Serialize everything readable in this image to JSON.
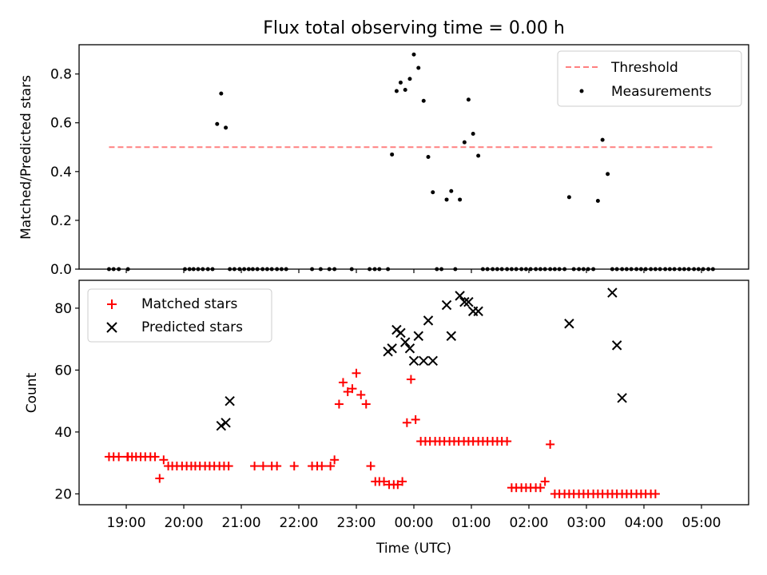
{
  "page": {
    "title": "Flux total observing time = 0.00 h",
    "x_axis_label": "Time (UTC)",
    "x_tick_labels": [
      "19:00",
      "20:00",
      "21:00",
      "22:00",
      "23:00",
      "00:00",
      "01:00",
      "02:00",
      "03:00",
      "04:00",
      "05:00"
    ]
  },
  "chart_data": [
    {
      "type": "scatter",
      "title": "Flux total observing time = 0.00 h",
      "ylabel": "Matched/Predicted stars",
      "xlabel": "",
      "x_unit": "hours since 19:00 UTC",
      "xlim": [
        -0.82,
        10.82
      ],
      "ylim": [
        0,
        0.92
      ],
      "y_ticks": [
        0.0,
        0.2,
        0.4,
        0.6,
        0.8
      ],
      "y_tick_labels": [
        "0.0",
        "0.2",
        "0.4",
        "0.6",
        "0.8"
      ],
      "legend_position": "top-right",
      "threshold": {
        "name": "Threshold",
        "value": 0.5,
        "x_range": [
          -0.3,
          10.2
        ],
        "color": "#ff8080"
      },
      "series": [
        {
          "name": "Measurements",
          "color": "#000000",
          "marker": "dot",
          "x": [
            -0.3,
            -0.22,
            -0.13,
            0.03,
            1.02,
            1.1,
            1.17,
            1.25,
            1.33,
            1.42,
            1.5,
            1.58,
            1.65,
            1.73,
            1.8,
            1.88,
            1.97,
            2.05,
            2.13,
            2.2,
            2.28,
            2.37,
            2.45,
            2.53,
            2.62,
            2.7,
            2.78,
            3.23,
            3.38,
            3.53,
            3.62,
            3.92,
            4.23,
            4.32,
            4.4,
            4.55,
            4.62,
            4.7,
            4.77,
            4.85,
            4.93,
            5.0,
            5.08,
            5.17,
            5.25,
            5.33,
            5.4,
            5.48,
            5.57,
            5.65,
            5.72,
            5.8,
            5.88,
            5.95,
            6.03,
            6.12,
            6.2,
            6.28,
            6.37,
            6.45,
            6.53,
            6.62,
            6.7,
            6.78,
            6.87,
            6.95,
            7.03,
            7.12,
            7.2,
            7.28,
            7.37,
            7.45,
            7.53,
            7.62,
            7.7,
            7.78,
            7.87,
            7.95,
            8.03,
            8.12,
            8.2,
            8.28,
            8.37,
            8.45,
            8.53,
            8.62,
            8.7,
            8.78,
            8.87,
            8.95,
            9.03,
            9.12,
            9.2,
            9.28,
            9.37,
            9.45,
            9.53,
            9.62,
            9.7,
            9.78,
            9.87,
            9.95,
            10.03,
            10.12,
            10.2
          ],
          "y": [
            0,
            0,
            0,
            0,
            0,
            0,
            0,
            0,
            0,
            0,
            0,
            0.595,
            0.72,
            0.58,
            0,
            0,
            0,
            0,
            0,
            0,
            0,
            0,
            0,
            0,
            0,
            0,
            0,
            0,
            0,
            0,
            0,
            0,
            0,
            0,
            0,
            0,
            0.47,
            0.73,
            0.765,
            0.735,
            0.78,
            0.88,
            0.825,
            0.69,
            0.46,
            0.315,
            0,
            0,
            0.285,
            0.32,
            0,
            0.285,
            0.52,
            0.695,
            0.555,
            0.465,
            0,
            0,
            0,
            0,
            0,
            0,
            0,
            0,
            0,
            0,
            0,
            0,
            0,
            0,
            0,
            0,
            0,
            0,
            0.295,
            0,
            0,
            0,
            0,
            0,
            0.28,
            0.53,
            0.39,
            0,
            0,
            0,
            0,
            0,
            0,
            0,
            0,
            0,
            0,
            0,
            0,
            0,
            0,
            0,
            0,
            0,
            0,
            0,
            0,
            0,
            0
          ]
        }
      ]
    },
    {
      "type": "scatter",
      "xlabel": "Time (UTC)",
      "ylabel": "Count",
      "x_unit": "hours since 19:00 UTC",
      "xlim": [
        -0.82,
        10.82
      ],
      "ylim": [
        16.5,
        89
      ],
      "y_ticks": [
        20,
        40,
        60,
        80
      ],
      "y_tick_labels": [
        "20",
        "40",
        "60",
        "80"
      ],
      "legend_position": "top-left",
      "series": [
        {
          "name": "Matched stars",
          "color": "#ff0000",
          "marker": "plus",
          "x": [
            -0.3,
            -0.22,
            -0.13,
            0.03,
            0.02,
            0.1,
            0.17,
            0.25,
            0.33,
            0.42,
            0.5,
            0.58,
            0.65,
            0.73,
            0.8,
            0.88,
            0.97,
            1.05,
            1.13,
            1.2,
            1.28,
            1.37,
            1.45,
            1.53,
            1.62,
            1.7,
            1.78,
            2.23,
            2.38,
            2.53,
            2.62,
            2.92,
            3.23,
            3.32,
            3.4,
            3.55,
            3.62,
            3.7,
            3.77,
            3.85,
            3.93,
            4.0,
            4.08,
            4.17,
            4.25,
            4.33,
            4.4,
            4.48,
            4.57,
            4.65,
            4.72,
            4.8,
            4.88,
            4.95,
            5.03,
            5.12,
            5.2,
            5.28,
            5.37,
            5.45,
            5.53,
            5.62,
            5.7,
            5.78,
            5.87,
            5.95,
            6.03,
            6.12,
            6.2,
            6.28,
            6.37,
            6.45,
            6.53,
            6.62,
            6.7,
            6.78,
            6.87,
            6.95,
            7.03,
            7.12,
            7.2,
            7.28,
            7.37,
            7.45,
            7.53,
            7.62,
            7.7,
            7.78,
            7.87,
            7.95,
            8.03,
            8.12,
            8.2,
            8.28,
            8.37,
            8.45,
            8.53,
            8.62,
            8.7,
            8.78,
            8.87,
            8.95,
            9.03,
            9.12,
            9.2
          ],
          "y": [
            32,
            32,
            32,
            32,
            32,
            32,
            32,
            32,
            32,
            32,
            32,
            25,
            31,
            29,
            29,
            29,
            29,
            29,
            29,
            29,
            29,
            29,
            29,
            29,
            29,
            29,
            29,
            29,
            29,
            29,
            29,
            29,
            29,
            29,
            29,
            29,
            31,
            49,
            56,
            53,
            54,
            59,
            52,
            49,
            29,
            24,
            24,
            24,
            23,
            23,
            23,
            24,
            43,
            57,
            44,
            37,
            37,
            37,
            37,
            37,
            37,
            37,
            37,
            37,
            37,
            37,
            37,
            37,
            37,
            37,
            37,
            37,
            37,
            37,
            22,
            22,
            22,
            22,
            22,
            22,
            22,
            24,
            36,
            20,
            20,
            20,
            20,
            20,
            20,
            20,
            20,
            20,
            20,
            20,
            20,
            20,
            20,
            20,
            20,
            20,
            20,
            20,
            20,
            20,
            20
          ]
        },
        {
          "name": "Predicted stars",
          "color": "#000000",
          "marker": "x",
          "x": [
            1.65,
            1.73,
            1.8,
            4.55,
            4.62,
            4.7,
            4.77,
            4.85,
            4.93,
            5.0,
            5.08,
            5.17,
            5.25,
            5.33,
            5.57,
            5.65,
            5.8,
            5.88,
            5.95,
            6.03,
            6.12,
            7.7,
            8.45,
            8.53,
            8.62
          ],
          "y": [
            42,
            43,
            50,
            66,
            67,
            73,
            72,
            69,
            67,
            63,
            71,
            63,
            76,
            63,
            81,
            71,
            84,
            82,
            82,
            79,
            79,
            75,
            85,
            68,
            51
          ]
        }
      ]
    }
  ]
}
